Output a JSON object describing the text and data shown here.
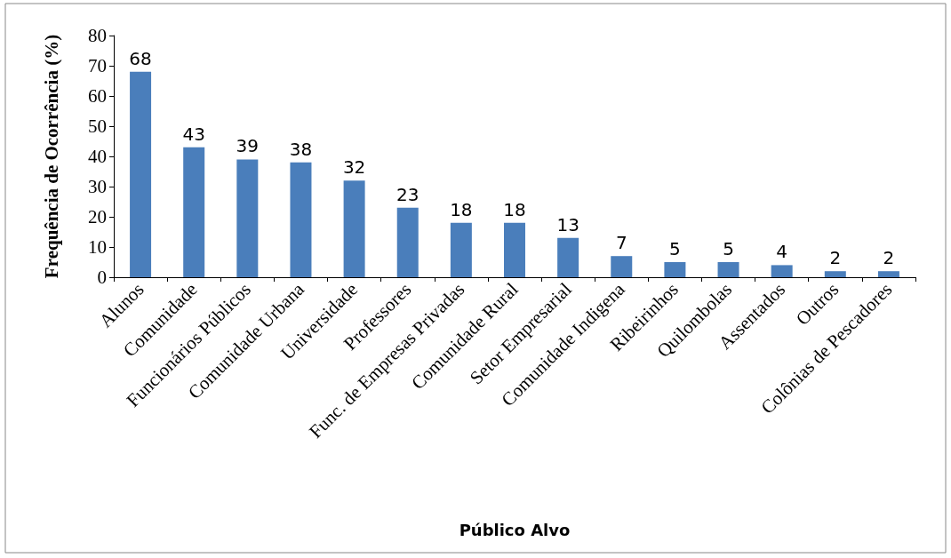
{
  "chart_data": {
    "type": "bar",
    "xlabel": "Público Alvo",
    "ylabel": "Frequência de Ocorrência (%)",
    "categories": [
      "Alunos",
      "Comunidade",
      "Funcionários Públicos",
      "Comunidade Urbana",
      "Universidade",
      "Professores",
      "Func. de Empresas Privadas",
      "Comunidade Rural",
      "Setor Empresarial",
      "Comunidade Indigena",
      "Ribeirinhos",
      "Quilombolas",
      "Assentados",
      "Outros",
      "Colônias de Pescadores"
    ],
    "values": [
      68,
      43,
      39,
      38,
      32,
      23,
      18,
      18,
      13,
      7,
      5,
      5,
      4,
      2,
      2
    ],
    "color": "#4a7ebb",
    "ylim": [
      0,
      80
    ],
    "yticks": [
      0,
      10,
      20,
      30,
      40,
      50,
      60,
      70,
      80
    ],
    "grid": false,
    "data_labels": true
  }
}
